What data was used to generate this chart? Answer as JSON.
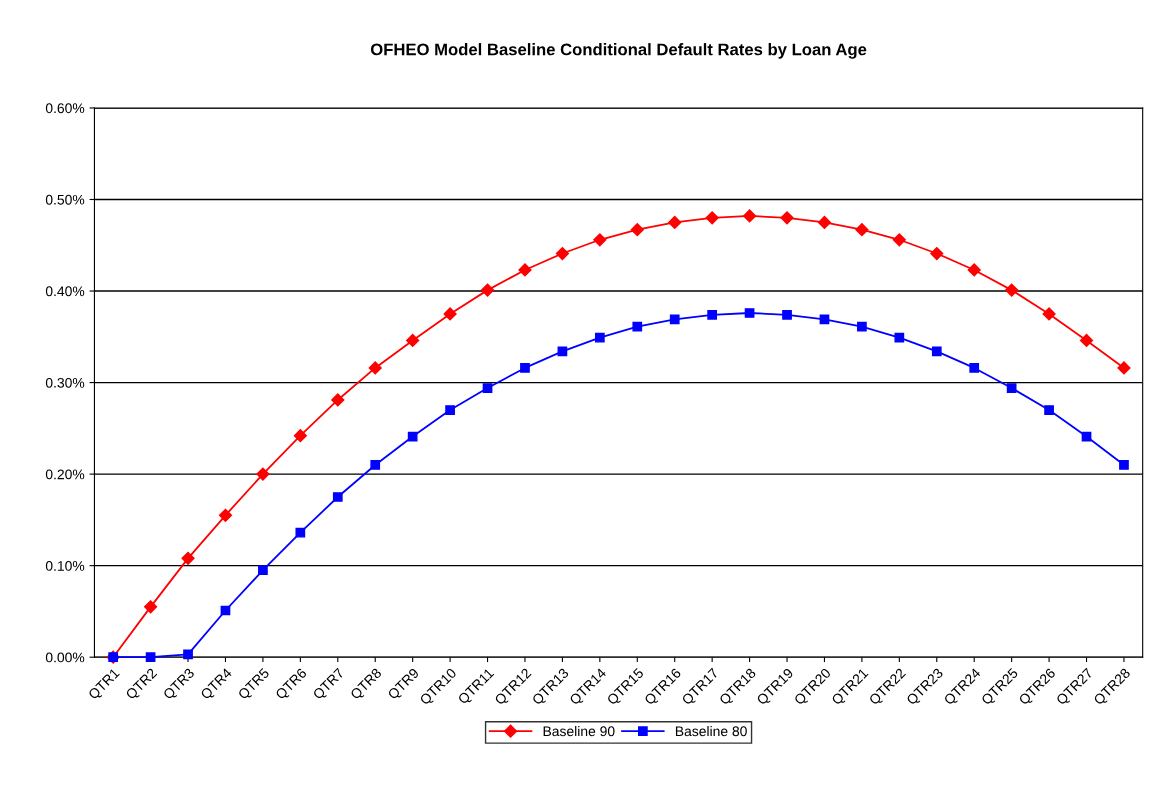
{
  "chart_data": {
    "type": "line",
    "title": "OFHEO Model Baseline Conditional Default Rates by Loan Age",
    "categories": [
      "QTR1",
      "QTR2",
      "QTR3",
      "QTR4",
      "QTR5",
      "QTR6",
      "QTR7",
      "QTR8",
      "QTR9",
      "QTR10",
      "QTR11",
      "QTR12",
      "QTR13",
      "QTR14",
      "QTR15",
      "QTR16",
      "QTR17",
      "QTR18",
      "QTR19",
      "QTR20",
      "QTR21",
      "QTR22",
      "QTR23",
      "QTR24",
      "QTR25",
      "QTR26",
      "QTR27",
      "QTR28"
    ],
    "series": [
      {
        "name": "Baseline 90",
        "color": "#ff0000",
        "marker": "diamond",
        "values": [
          0,
          0.055,
          0.108,
          0.155,
          0.2,
          0.242,
          0.281,
          0.316,
          0.346,
          0.375,
          0.401,
          0.423,
          0.441,
          0.456,
          0.467,
          0.475,
          0.48,
          0.482,
          0.48,
          0.475,
          0.467,
          0.456,
          0.441,
          0.423,
          0.401,
          0.375,
          0.346,
          0.316
        ]
      },
      {
        "name": "Baseline 80",
        "color": "#0000ff",
        "marker": "square",
        "values": [
          0,
          0,
          0.003,
          0.051,
          0.095,
          0.136,
          0.175,
          0.21,
          0.241,
          0.27,
          0.294,
          0.316,
          0.334,
          0.349,
          0.361,
          0.369,
          0.374,
          0.376,
          0.374,
          0.369,
          0.361,
          0.349,
          0.334,
          0.316,
          0.294,
          0.27,
          0.241,
          0.21
        ]
      }
    ],
    "ylim": [
      0,
      0.6
    ],
    "yticks": [
      {
        "value": 0,
        "label": "0.00%"
      },
      {
        "value": 0.1,
        "label": "0.10%"
      },
      {
        "value": 0.2,
        "label": "0.20%"
      },
      {
        "value": 0.3,
        "label": "0.30%"
      },
      {
        "value": 0.4,
        "label": "0.40%"
      },
      {
        "value": 0.5,
        "label": "0.50%"
      },
      {
        "value": 0.6,
        "label": "0.60%"
      }
    ],
    "grid": "y",
    "legend": "bottom",
    "line_style": "solid"
  }
}
